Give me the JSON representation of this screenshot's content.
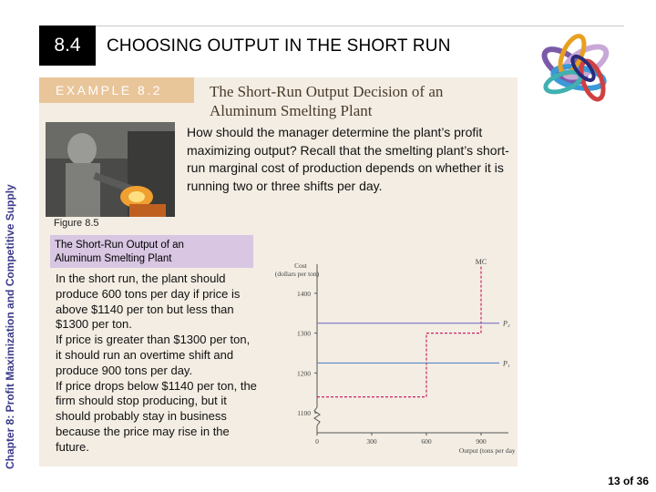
{
  "chapter_label": "Chapter 8: Profit Maximization and Competitive Supply",
  "section": {
    "number": "8.4",
    "title": "CHOOSING OUTPUT IN THE SHORT RUN"
  },
  "example": {
    "tag": "EXAMPLE 8.2",
    "title_line1": "The Short-Run Output Decision of an",
    "title_line2": "Aluminum Smelting Plant",
    "question": "How should the manager determine the plant’s profit maximizing output? Recall that the smelting plant’s short-run marginal cost of production depends on whether it is running two or three shifts per day."
  },
  "figure": {
    "label": "Figure 8.5",
    "caption_line1": "The Short-Run Output of an",
    "caption_line2": "Aluminum Smelting Plant",
    "paragraphs": [
      "In the short run, the plant should produce 600 tons per day if price is above $1140 per ton but less than $1300 per ton.",
      "If price is greater than $1300 per ton, it should run an overtime shift and produce 900 tons per day.",
      "If price drops below $1140 per ton, the firm should stop producing, but it should probably stay in business because the price may rise in the future."
    ]
  },
  "chart_data": {
    "type": "line",
    "ylabel_line1": "Cost",
    "ylabel_line2": "(dollars per ton)",
    "xlabel": "Output (tons per day)",
    "x_ticks": [
      0,
      300,
      600,
      900
    ],
    "y_ticks": [
      1100,
      1200,
      1300,
      1400
    ],
    "ylim": [
      1050,
      1450
    ],
    "xlim": [
      0,
      1000
    ],
    "axis_break": true,
    "series": [
      {
        "name": "MC",
        "color": "#cc2266",
        "style": "dashed",
        "points": [
          [
            0,
            1140
          ],
          [
            600,
            1140
          ],
          [
            600,
            1300
          ],
          [
            900,
            1300
          ],
          [
            900,
            1480
          ]
        ]
      },
      {
        "name": "P₂",
        "color": "#7b72c8",
        "style": "solid",
        "y": 1325
      },
      {
        "name": "P₁",
        "color": "#5a86c8",
        "style": "solid",
        "y": 1225
      }
    ]
  },
  "page": {
    "number": "13 of 36"
  }
}
